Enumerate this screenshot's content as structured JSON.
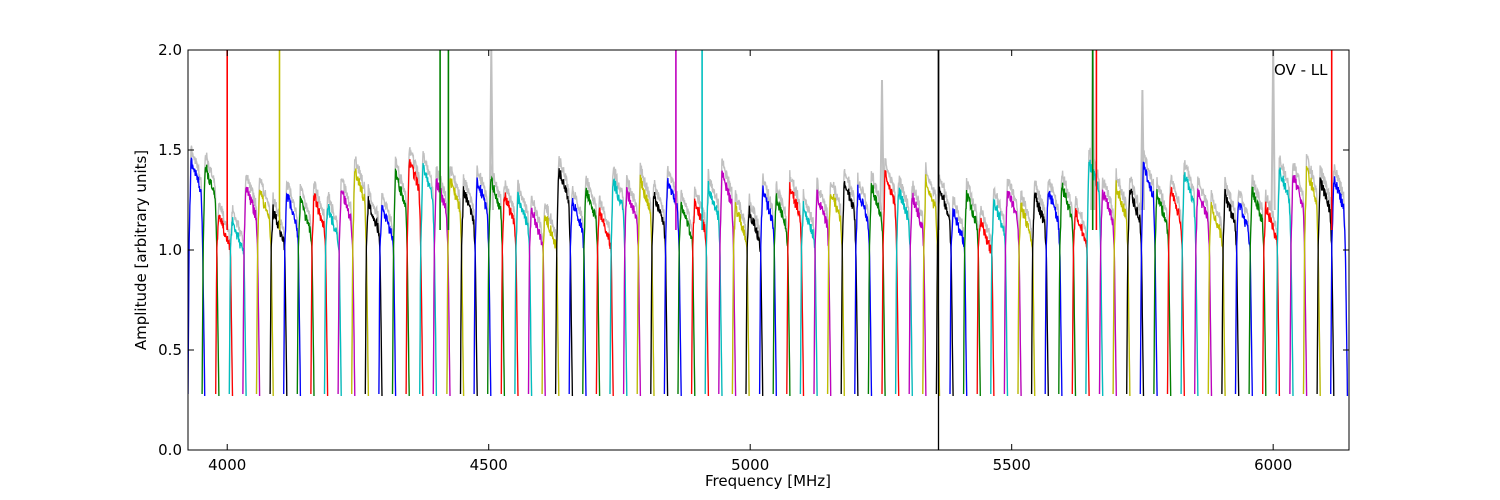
{
  "chart_data": {
    "type": "line",
    "title": "",
    "xlabel": "Frequency [MHz]",
    "ylabel": "Amplitude [arbitrary units]",
    "xlim": [
      3925,
      6145
    ],
    "ylim": [
      0.0,
      2.0
    ],
    "x_ticks": [
      4000,
      4500,
      5000,
      5500,
      6000
    ],
    "y_ticks": [
      0.0,
      0.5,
      1.0,
      1.5,
      2.0
    ],
    "x_tick_labels": [
      "4000",
      "4500",
      "5000",
      "5500",
      "6000"
    ],
    "y_tick_labels": [
      "0.0",
      "0.5",
      "1.0",
      "1.5",
      "2.0"
    ],
    "grid": false,
    "annotation": "OV - LL",
    "vertical_line_x": 5360,
    "colors_cycle": [
      "#0000ff",
      "#008000",
      "#ff0000",
      "#00bfbf",
      "#bf00bf",
      "#bfbf00",
      "#000000"
    ],
    "background_trace_color": "#c0c0c0",
    "channel_width_mhz": 32,
    "channel_starts_mhz": [
      3925,
      3952,
      3978,
      4004,
      4030,
      4056,
      4082,
      4108,
      4134,
      4160,
      4186,
      4212,
      4238,
      4264,
      4290,
      4316,
      4342,
      4368,
      4394,
      4420,
      4446,
      4472,
      4498,
      4524,
      4550,
      4576,
      4602,
      4628,
      4654,
      4680,
      4706,
      4732,
      4758,
      4784,
      4810,
      4836,
      4862,
      4888,
      4914,
      4940,
      4966,
      4992,
      5018,
      5044,
      5070,
      5096,
      5122,
      5148,
      5174,
      5200,
      5226,
      5252,
      5278,
      5304,
      5330,
      5356,
      5382,
      5408,
      5434,
      5460,
      5486,
      5512,
      5538,
      5564,
      5590,
      5616,
      5642,
      5668,
      5694,
      5720,
      5746,
      5772,
      5798,
      5824,
      5850,
      5876,
      5902,
      5928,
      5954,
      5980,
      6006,
      6032,
      6058,
      6084,
      6110
    ],
    "channel_levels": [
      1.45,
      1.42,
      1.18,
      1.15,
      1.32,
      1.3,
      1.2,
      1.28,
      1.25,
      1.27,
      1.22,
      1.3,
      1.4,
      1.25,
      1.22,
      1.38,
      1.45,
      1.42,
      1.35,
      1.36,
      1.3,
      1.35,
      1.35,
      1.28,
      1.27,
      1.2,
      1.18,
      1.4,
      1.25,
      1.3,
      1.2,
      1.35,
      1.3,
      1.35,
      1.28,
      1.35,
      1.23,
      1.25,
      1.32,
      1.38,
      1.22,
      1.2,
      1.3,
      1.26,
      1.32,
      1.22,
      1.28,
      1.3,
      1.35,
      1.3,
      1.32,
      1.38,
      1.3,
      1.27,
      1.35,
      1.32,
      1.2,
      1.28,
      1.15,
      1.25,
      1.3,
      1.22,
      1.28,
      1.3,
      1.32,
      1.2,
      1.45,
      1.3,
      1.32,
      1.3,
      1.42,
      1.28,
      1.3,
      1.38,
      1.3,
      1.22,
      1.28,
      1.24,
      1.3,
      1.22,
      1.4,
      1.38,
      1.4,
      1.35,
      1.36
    ],
    "spikes": [
      {
        "x": 4000,
        "y": 2.0,
        "color": "#ff0000"
      },
      {
        "x": 4100,
        "y": 2.0,
        "color": "#bfbf00"
      },
      {
        "x": 4407,
        "y": 2.0,
        "color": "#008000"
      },
      {
        "x": 4423,
        "y": 2.0,
        "color": "#008000"
      },
      {
        "x": 4858,
        "y": 2.0,
        "color": "#bf00bf"
      },
      {
        "x": 4908,
        "y": 2.0,
        "color": "#00bfbf"
      },
      {
        "x": 5360,
        "y": 2.0,
        "color": "#000000"
      },
      {
        "x": 5655,
        "y": 2.0,
        "color": "#008000"
      },
      {
        "x": 5662,
        "y": 2.0,
        "color": "#ff0000"
      },
      {
        "x": 6112,
        "y": 2.0,
        "color": "#ff0000"
      }
    ],
    "grey_spikes": [
      {
        "x": 4505,
        "y": 2.0
      },
      {
        "x": 5252,
        "y": 1.85
      },
      {
        "x": 5655,
        "y": 2.0
      },
      {
        "x": 5750,
        "y": 1.8
      },
      {
        "x": 6000,
        "y": 2.0
      }
    ]
  }
}
